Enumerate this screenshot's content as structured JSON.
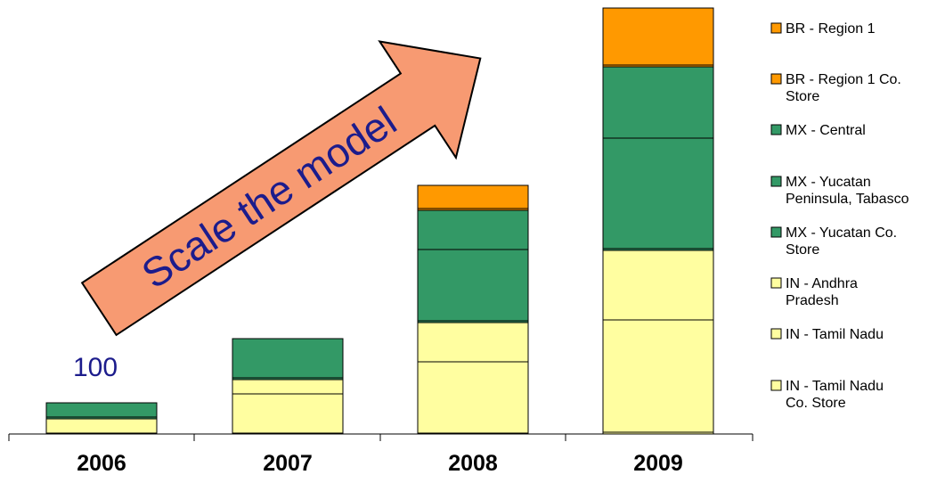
{
  "chart_data": {
    "type": "bar",
    "stacked": true,
    "categories": [
      "2006",
      "2007",
      "2008",
      "2009"
    ],
    "series": [
      {
        "name": "IN - Tamil Nadu Co. Store",
        "color": "#fffea0",
        "values": [
          1,
          1,
          1,
          2
        ]
      },
      {
        "name": "IN - Tamil Nadu",
        "color": "#fffea0",
        "values": [
          16,
          44,
          80,
          126
        ]
      },
      {
        "name": "IN - Andhra Pradesh",
        "color": "#fffea0",
        "values": [
          0,
          16,
          44,
          78
        ]
      },
      {
        "name": "MX - Yucatan Co. Store",
        "color": "#339966",
        "values": [
          2,
          2,
          2,
          2
        ]
      },
      {
        "name": "MX - Yucatan Peninsula, Tabasco",
        "color": "#339966",
        "values": [
          0,
          44,
          80,
          124
        ]
      },
      {
        "name": "MX - Central",
        "color": "#339966",
        "values": [
          16,
          0,
          44,
          80
        ]
      },
      {
        "name": "BR - Region 1 Co. Store",
        "color": "#ff9900",
        "values": [
          0,
          0,
          2,
          2
        ]
      },
      {
        "name": "BR - Region 1",
        "color": "#ff9900",
        "values": [
          0,
          0,
          26,
          64
        ]
      }
    ],
    "legend_order": [
      "BR - Region 1",
      "BR - Region 1 Co. Store",
      "MX - Central",
      "MX - Yucatan Peninsula, Tabasco",
      "MX - Yucatan Co. Store",
      "IN - Andhra Pradesh",
      "IN - Tamil Nadu",
      "IN - Tamil Nadu Co. Store"
    ],
    "legend_position": "right",
    "ylim": [
      0,
      478
    ],
    "grid": false,
    "annotations": [
      {
        "text": "100",
        "near": "2006"
      },
      {
        "text": "Scale the model",
        "style": "orange arrow pointing up-right"
      }
    ]
  }
}
